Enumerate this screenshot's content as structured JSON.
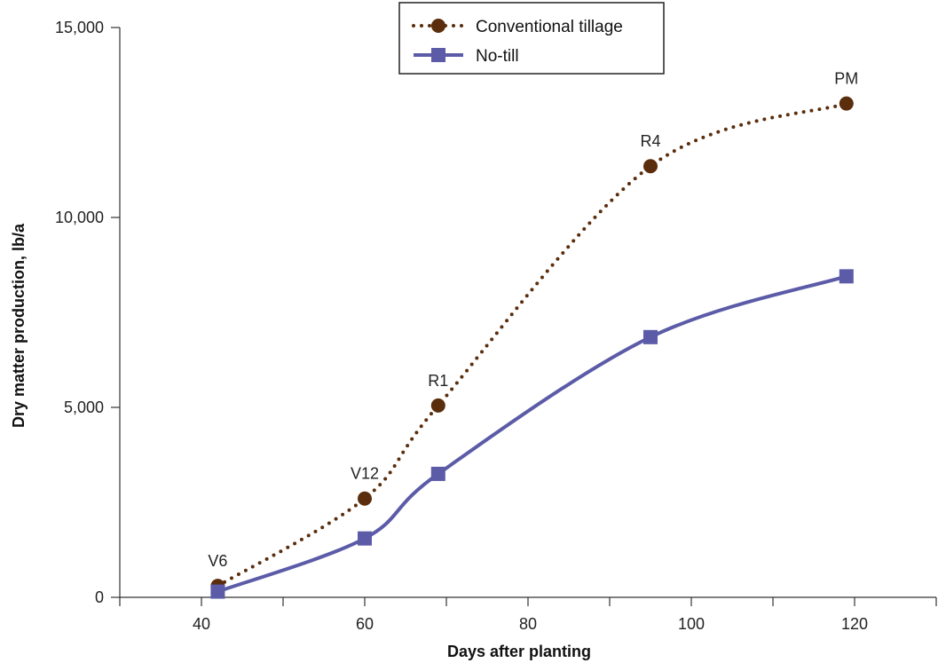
{
  "chart_data": {
    "type": "line",
    "xlabel": "Days after planting",
    "ylabel": "Dry matter production, lb/a",
    "xlim": [
      30,
      130
    ],
    "ylim": [
      0,
      15000
    ],
    "x_ticks": [
      40,
      60,
      80,
      100,
      120
    ],
    "x_tick_labels": [
      "40",
      "60",
      "80",
      "100",
      "120"
    ],
    "y_ticks": [
      0,
      5000,
      10000,
      15000
    ],
    "y_tick_labels": [
      "0",
      "5,000",
      "10,000",
      "15,000"
    ],
    "grid": false,
    "legend_position": "top-center",
    "series": [
      {
        "name": "Conventional tillage",
        "color": "#5a2d0c",
        "line_style": "dotted",
        "marker": "circle",
        "x": [
          42,
          60,
          69,
          95,
          119
        ],
        "y": [
          300,
          2600,
          5050,
          11350,
          13000
        ]
      },
      {
        "name": "No-till",
        "color": "#5b5ba8",
        "line_style": "solid",
        "marker": "square",
        "x": [
          42,
          60,
          69,
          95,
          119
        ],
        "y": [
          150,
          1550,
          3250,
          6850,
          8450
        ]
      }
    ],
    "annotations": [
      {
        "text": "V6",
        "x": 42,
        "y": 300
      },
      {
        "text": "V12",
        "x": 60,
        "y": 2600
      },
      {
        "text": "R1",
        "x": 69,
        "y": 5050
      },
      {
        "text": "R4",
        "x": 95,
        "y": 11350
      },
      {
        "text": "PM",
        "x": 119,
        "y": 13000
      }
    ]
  }
}
